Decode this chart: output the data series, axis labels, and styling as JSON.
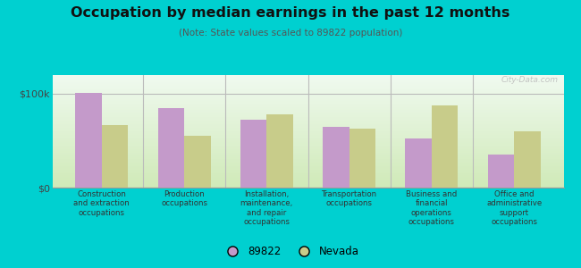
{
  "title": "Occupation by median earnings in the past 12 months",
  "subtitle": "(Note: State values scaled to 89822 population)",
  "categories": [
    "Construction\nand extraction\noccupations",
    "Production\noccupations",
    "Installation,\nmaintenance,\nand repair\noccupations",
    "Transportation\noccupations",
    "Business and\nfinancial\noperations\noccupations",
    "Office and\nadministrative\nsupport\noccupations"
  ],
  "values_89822": [
    101000,
    85000,
    72000,
    65000,
    52000,
    35000
  ],
  "values_nevada": [
    67000,
    55000,
    78000,
    63000,
    88000,
    60000
  ],
  "ylim": [
    0,
    120000
  ],
  "yticks": [
    0,
    100000
  ],
  "ytick_labels": [
    "$0",
    "$100k"
  ],
  "bar_color_89822": "#c49aca",
  "bar_color_nevada": "#c8cc8a",
  "background_color_outer": "#00d0d0",
  "legend_label_1": "89822",
  "legend_label_2": "Nevada",
  "bar_width": 0.32,
  "watermark": "City-Data.com",
  "grad_top": "#f0faf0",
  "grad_bottom": "#d8edc8"
}
